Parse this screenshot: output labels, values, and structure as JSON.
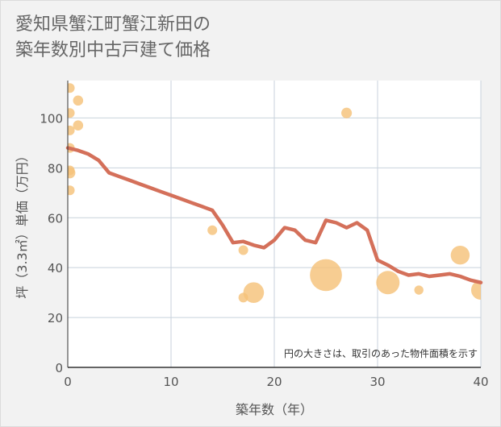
{
  "title_line1": "愛知県蟹江町蟹江新田の",
  "title_line2": "築年数別中古戸建て価格",
  "chart_data": {
    "type": "scatter",
    "title": "愛知県蟹江町蟹江新田の築年数別中古戸建て価格",
    "xlabel": "築年数（年）",
    "ylabel": "坪（3.3㎡）単価（万円）",
    "xlim": [
      0,
      40
    ],
    "ylim": [
      0,
      115
    ],
    "xticks": [
      0,
      10,
      20,
      30,
      40
    ],
    "yticks": [
      0,
      20,
      40,
      60,
      80,
      100
    ],
    "grid": true,
    "note": "円の大きさは、取引のあった物件面積を示す",
    "colors": {
      "bubble": "#f5c27a",
      "line": "#d4705a",
      "grid": "#c8d2dc",
      "axis": "#333333"
    },
    "bubbles": [
      {
        "x": 0.2,
        "y": 112,
        "size": 1
      },
      {
        "x": 0.2,
        "y": 102,
        "size": 1
      },
      {
        "x": 0.2,
        "y": 95,
        "size": 1
      },
      {
        "x": 0.2,
        "y": 88,
        "size": 1
      },
      {
        "x": 0.2,
        "y": 79,
        "size": 1
      },
      {
        "x": 0.2,
        "y": 78,
        "size": 1.3
      },
      {
        "x": 0.2,
        "y": 71,
        "size": 1
      },
      {
        "x": 1,
        "y": 107,
        "size": 1.1
      },
      {
        "x": 1,
        "y": 97,
        "size": 1.1
      },
      {
        "x": 14,
        "y": 55,
        "size": 1
      },
      {
        "x": 17,
        "y": 47,
        "size": 1
      },
      {
        "x": 17,
        "y": 28,
        "size": 1
      },
      {
        "x": 18,
        "y": 30,
        "size": 2.5
      },
      {
        "x": 25,
        "y": 37,
        "size": 6
      },
      {
        "x": 27,
        "y": 102,
        "size": 1.2
      },
      {
        "x": 31,
        "y": 34,
        "size": 3.2
      },
      {
        "x": 34,
        "y": 31,
        "size": 0.9
      },
      {
        "x": 38,
        "y": 45,
        "size": 2.1
      },
      {
        "x": 40,
        "y": 31,
        "size": 2.2
      }
    ],
    "trend": {
      "x": [
        0,
        1,
        2,
        3,
        4,
        5,
        6,
        7,
        8,
        9,
        10,
        11,
        12,
        13,
        14,
        15,
        16,
        17,
        18,
        19,
        20,
        21,
        22,
        23,
        24,
        25,
        26,
        27,
        28,
        29,
        30,
        31,
        32,
        33,
        34,
        35,
        36,
        37,
        38,
        39,
        40
      ],
      "y": [
        88,
        87,
        85.5,
        83,
        78,
        76.5,
        75,
        73.5,
        72,
        70.5,
        69,
        67.5,
        66,
        64.5,
        63,
        57,
        50,
        50.5,
        49,
        48,
        51,
        56,
        55,
        51,
        50,
        59,
        58,
        56,
        58,
        55,
        43,
        41,
        38.5,
        37,
        37.5,
        36.5,
        37,
        37.5,
        36.5,
        35,
        34
      ]
    }
  }
}
